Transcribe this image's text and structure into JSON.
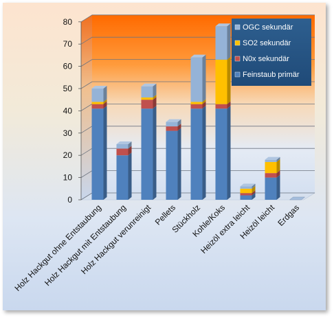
{
  "chart_data": {
    "type": "bar",
    "stacked": true,
    "three_d": true,
    "categories": [
      "Holz Hackgut ohne Entstaubung",
      "Holz Hackgut mit Entstaubung",
      "Holz Hackgut verunreinigt",
      "Pellets",
      "Stückholz",
      "Kohle/Koks",
      "Heizöl extra leicht",
      "Heizöl leicht",
      "Erdgas"
    ],
    "series": [
      {
        "name": "Feinstaub primär",
        "color": "#4f81bd",
        "values": [
          41,
          20,
          41,
          31,
          41,
          41,
          2,
          10,
          0
        ]
      },
      {
        "name": "N0x sekundär",
        "color": "#c0504d",
        "values": [
          2,
          3,
          4,
          2,
          2,
          2,
          1,
          2,
          0
        ]
      },
      {
        "name": "SO2 sekundär",
        "color": "#ffc000",
        "values": [
          1,
          0,
          1,
          0,
          1,
          20,
          2,
          5,
          0
        ]
      },
      {
        "name": "OGC sekundär",
        "color": "#95b3d7",
        "values": [
          6,
          2,
          5,
          2,
          20,
          15,
          1,
          1,
          0
        ]
      }
    ],
    "y_ticks": [
      "0",
      "10",
      "20",
      "30",
      "40",
      "50",
      "60",
      "70",
      "80"
    ],
    "ylim": [
      0,
      80
    ],
    "grid": true,
    "legend": "top-right",
    "title": "",
    "xlabel": "",
    "ylabel": ""
  }
}
